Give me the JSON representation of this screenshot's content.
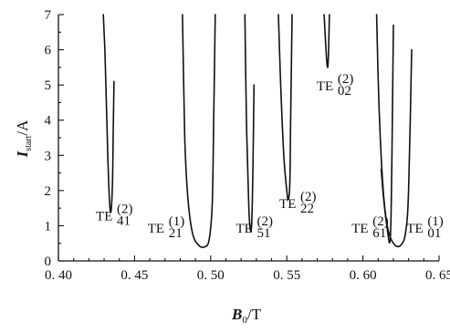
{
  "chart_data": {
    "type": "line",
    "xlabel": "B0/T",
    "xlabel_main": "B",
    "xlabel_sub": "0",
    "xlabel_unit": "/T",
    "ylabel": "Istart/A",
    "ylabel_main": "I",
    "ylabel_sub": "start",
    "ylabel_unit": "/A",
    "xlim": [
      0.4,
      0.65
    ],
    "ylim": [
      0,
      7
    ],
    "x_ticks": [
      {
        "value": 0.4,
        "label": "0. 40"
      },
      {
        "value": 0.45,
        "label": "0. 45"
      },
      {
        "value": 0.5,
        "label": "0. 50"
      },
      {
        "value": 0.55,
        "label": "0. 55"
      },
      {
        "value": 0.6,
        "label": "0. 60"
      },
      {
        "value": 0.65,
        "label": "0. 65"
      }
    ],
    "y_ticks": [
      {
        "value": 0,
        "label": "0"
      },
      {
        "value": 1,
        "label": "1"
      },
      {
        "value": 2,
        "label": "2"
      },
      {
        "value": 3,
        "label": "3"
      },
      {
        "value": 4,
        "label": "4"
      },
      {
        "value": 5,
        "label": "5"
      },
      {
        "value": 6,
        "label": "6"
      },
      {
        "value": 7,
        "label": "7"
      }
    ],
    "series": [
      {
        "mode": "TE",
        "sub": "41",
        "sup": "(2)",
        "label_at": [
          0.433,
          1.15
        ],
        "x": [
          0.4295,
          0.4305,
          0.4315,
          0.4325,
          0.4335,
          0.4345,
          0.4355,
          0.436,
          0.4365
        ],
        "y": [
          7.0,
          6.0,
          4.5,
          2.9,
          1.75,
          1.4,
          2.2,
          3.6,
          5.1
        ]
      },
      {
        "mode": "TE",
        "sub": "21",
        "sup": "(1)",
        "label_at": [
          0.467,
          0.8
        ],
        "x": [
          0.4815,
          0.483,
          0.485,
          0.488,
          0.492,
          0.496,
          0.499,
          0.501,
          0.502,
          0.503
        ],
        "y": [
          7.0,
          3.5,
          1.8,
          0.8,
          0.45,
          0.4,
          0.6,
          1.6,
          4.0,
          7.0
        ]
      },
      {
        "mode": "TE",
        "sub": "51",
        "sup": "(2)",
        "label_at": [
          0.525,
          0.8
        ],
        "x": [
          0.5225,
          0.5235,
          0.525,
          0.526,
          0.527,
          0.5278,
          0.5285
        ],
        "y": [
          7.0,
          4.0,
          1.6,
          0.9,
          1.1,
          2.8,
          5.0
        ]
      },
      {
        "mode": "TE",
        "sub": "22",
        "sup": "(2)",
        "label_at": [
          0.5535,
          1.5
        ],
        "x": [
          0.5445,
          0.546,
          0.548,
          0.55,
          0.551,
          0.552,
          0.5525,
          0.5535
        ],
        "y": [
          7.0,
          5.0,
          3.0,
          2.0,
          1.75,
          2.2,
          4.0,
          7.0
        ]
      },
      {
        "mode": "TE",
        "sub": "02",
        "sup": "(2)",
        "label_at": [
          0.578,
          4.85
        ],
        "x": [
          0.5745,
          0.5755,
          0.5765,
          0.5772,
          0.578
        ],
        "y": [
          7.0,
          6.2,
          5.55,
          5.7,
          7.0
        ]
      },
      {
        "mode": "TE",
        "sub": "61",
        "sup": "(2)",
        "label_at": [
          0.601,
          0.8
        ],
        "x": [
          0.609,
          0.6105,
          0.613,
          0.616,
          0.618,
          0.619,
          0.62
        ],
        "y": [
          7.0,
          4.5,
          2.2,
          0.9,
          0.65,
          2.8,
          6.7
        ]
      },
      {
        "mode": "TE",
        "sub": "01",
        "sup": "(1)",
        "label_at": [
          0.637,
          0.8
        ],
        "x": [
          0.612,
          0.614,
          0.617,
          0.621,
          0.625,
          0.628,
          0.63,
          0.632
        ],
        "y": [
          2.6,
          1.6,
          0.8,
          0.45,
          0.45,
          0.8,
          2.0,
          6.0
        ]
      }
    ]
  }
}
